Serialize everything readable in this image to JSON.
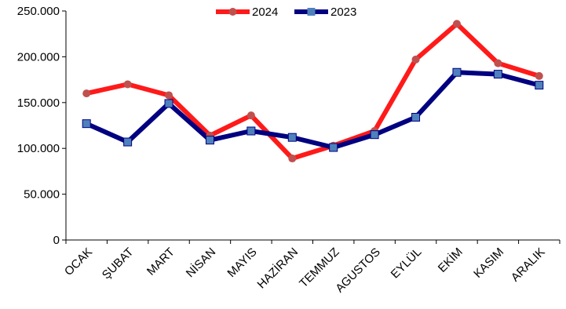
{
  "chart_data": {
    "type": "line",
    "categories": [
      "OCAK",
      "ŞUBAT",
      "MART",
      "NİSAN",
      "MAYIS",
      "HAZİRAN",
      "TEMMUZ",
      "AGUSTOS",
      "EYLÜL",
      "EKİM",
      "KASIM",
      "ARALIK"
    ],
    "y_ticks": [
      "0",
      "50.000",
      "100.000",
      "150.000",
      "200.000",
      "250.000"
    ],
    "ylim": [
      0,
      250000
    ],
    "grid": false,
    "legend_position": "top-center",
    "series": [
      {
        "name": "2024",
        "color": "#ff1a1a",
        "marker_color": "#c0504d",
        "marker": "circle",
        "values": [
          160000,
          170000,
          158000,
          114000,
          136000,
          89000,
          103000,
          119000,
          197000,
          236000,
          193000,
          179000
        ]
      },
      {
        "name": "2023",
        "color": "#000080",
        "marker_color": "#4f81bd",
        "marker": "square",
        "values": [
          127000,
          107000,
          149000,
          109000,
          119000,
          112000,
          101000,
          115000,
          134000,
          183000,
          181000,
          169000
        ]
      }
    ]
  }
}
